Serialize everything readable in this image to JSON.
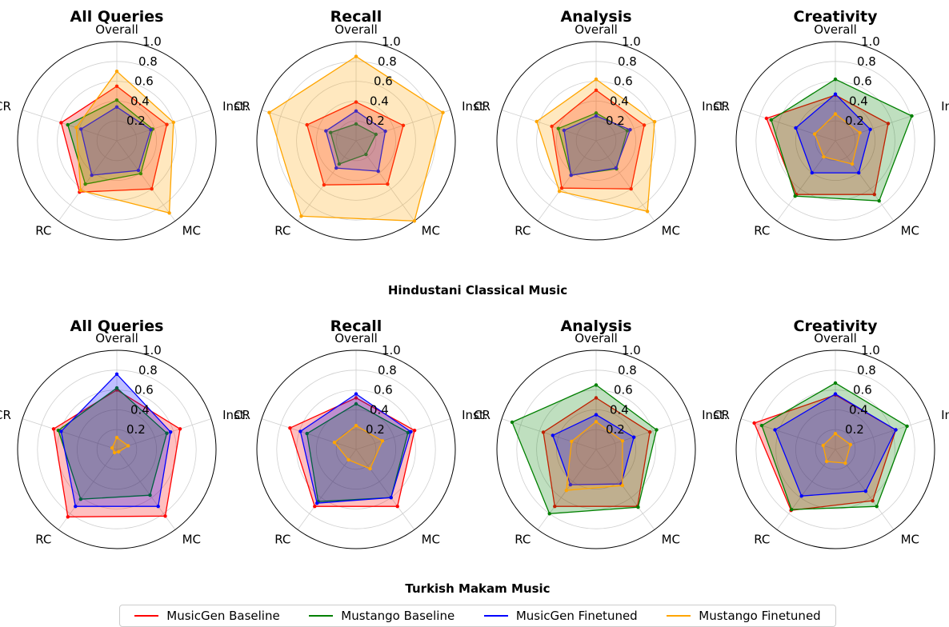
{
  "chart_data": {
    "type": "radar",
    "axes": [
      "Overall",
      "Inst.",
      "MC",
      "RC",
      "CR"
    ],
    "radial_ticks": [
      "0.2",
      "0.4",
      "0.6",
      "0.8",
      "1.0"
    ],
    "rlim": [
      0,
      1
    ],
    "legend": {
      "placement": "bottom",
      "entries": [
        {
          "name": "MusicGen Baseline",
          "color": "#ff0000"
        },
        {
          "name": "Mustango Baseline",
          "color": "#008000"
        },
        {
          "name": "MusicGen Finetuned",
          "color": "#0000ff"
        },
        {
          "name": "Mustango Finetuned",
          "color": "#ffa500"
        }
      ]
    },
    "sections": [
      {
        "title": "Hindustani Classical Music",
        "charts": [
          {
            "title": "All Queries",
            "series": [
              {
                "name": "MusicGen Baseline",
                "values": [
                  0.55,
                  0.53,
                  0.6,
                  0.64,
                  0.59
                ]
              },
              {
                "name": "Mustango Baseline",
                "values": [
                  0.41,
                  0.38,
                  0.41,
                  0.54,
                  0.52
                ]
              },
              {
                "name": "MusicGen Finetuned",
                "values": [
                  0.34,
                  0.36,
                  0.37,
                  0.43,
                  0.38
                ]
              },
              {
                "name": "Mustango Finetuned",
                "values": [
                  0.7,
                  0.6,
                  0.9,
                  0.62,
                  0.43
                ]
              }
            ]
          },
          {
            "title": "Recall",
            "series": [
              {
                "name": "MusicGen Baseline",
                "values": [
                  0.39,
                  0.5,
                  0.54,
                  0.55,
                  0.52
                ]
              },
              {
                "name": "Mustango Baseline",
                "values": [
                  0.17,
                  0.21,
                  0.17,
                  0.29,
                  0.27
                ]
              },
              {
                "name": "MusicGen Finetuned",
                "values": [
                  0.3,
                  0.31,
                  0.38,
                  0.34,
                  0.32
                ]
              },
              {
                "name": "Mustango Finetuned",
                "values": [
                  0.85,
                  0.92,
                  1.0,
                  0.94,
                  0.92
                ]
              }
            ]
          },
          {
            "title": "Analysis",
            "series": [
              {
                "name": "MusicGen Baseline",
                "values": [
                  0.51,
                  0.51,
                  0.6,
                  0.59,
                  0.47
                ]
              },
              {
                "name": "Mustango Baseline",
                "values": [
                  0.28,
                  0.33,
                  0.35,
                  0.43,
                  0.4
                ]
              },
              {
                "name": "MusicGen Finetuned",
                "values": [
                  0.25,
                  0.36,
                  0.34,
                  0.43,
                  0.34
                ]
              },
              {
                "name": "Mustango Finetuned",
                "values": [
                  0.62,
                  0.62,
                  0.88,
                  0.63,
                  0.63
                ]
              }
            ]
          },
          {
            "title": "Creativity",
            "series": [
              {
                "name": "MusicGen Baseline",
                "values": [
                  0.46,
                  0.56,
                  0.67,
                  0.67,
                  0.73
                ]
              },
              {
                "name": "Mustango Baseline",
                "values": [
                  0.62,
                  0.81,
                  0.75,
                  0.69,
                  0.68
                ]
              },
              {
                "name": "MusicGen Finetuned",
                "values": [
                  0.47,
                  0.37,
                  0.4,
                  0.4,
                  0.42
                ]
              },
              {
                "name": "Mustango Finetuned",
                "values": [
                  0.27,
                  0.26,
                  0.29,
                  0.2,
                  0.22
                ]
              }
            ]
          }
        ]
      },
      {
        "title": "Turkish Makam Music",
        "charts": [
          {
            "title": "All Queries",
            "series": [
              {
                "name": "MusicGen Baseline",
                "values": [
                  0.6,
                  0.67,
                  0.83,
                  0.84,
                  0.67
                ]
              },
              {
                "name": "Mustango Baseline",
                "values": [
                  0.62,
                  0.53,
                  0.57,
                  0.62,
                  0.62
                ]
              },
              {
                "name": "MusicGen Finetuned",
                "values": [
                  0.76,
                  0.57,
                  0.71,
                  0.71,
                  0.59
                ]
              },
              {
                "name": "Mustango Finetuned",
                "values": [
                  0.12,
                  0.12,
                  0.03,
                  0.04,
                  0.05
                ]
              }
            ]
          },
          {
            "title": "Recall",
            "series": [
              {
                "name": "MusicGen Baseline",
                "values": [
                  0.52,
                  0.62,
                  0.71,
                  0.71,
                  0.7
                ]
              },
              {
                "name": "Mustango Baseline",
                "values": [
                  0.46,
                  0.55,
                  0.6,
                  0.65,
                  0.52
                ]
              },
              {
                "name": "MusicGen Finetuned",
                "values": [
                  0.56,
                  0.58,
                  0.6,
                  0.67,
                  0.59
                ]
              },
              {
                "name": "Mustango Finetuned",
                "values": [
                  0.24,
                  0.28,
                  0.24,
                  0.13,
                  0.23
                ]
              }
            ]
          },
          {
            "title": "Analysis",
            "series": [
              {
                "name": "MusicGen Baseline",
                "values": [
                  0.52,
                  0.57,
                  0.71,
                  0.71,
                  0.56
                ]
              },
              {
                "name": "Mustango Baseline",
                "values": [
                  0.65,
                  0.64,
                  0.72,
                  0.8,
                  0.89
                ]
              },
              {
                "name": "MusicGen Finetuned",
                "values": [
                  0.35,
                  0.4,
                  0.43,
                  0.44,
                  0.46
                ]
              },
              {
                "name": "Mustango Finetuned",
                "values": [
                  0.28,
                  0.28,
                  0.45,
                  0.51,
                  0.26
                ]
              }
            ]
          },
          {
            "title": "Creativity",
            "series": [
              {
                "name": "MusicGen Baseline",
                "values": [
                  0.55,
                  0.64,
                  0.64,
                  0.76,
                  0.86
                ]
              },
              {
                "name": "Mustango Baseline",
                "values": [
                  0.67,
                  0.76,
                  0.71,
                  0.75,
                  0.78
                ]
              },
              {
                "name": "MusicGen Finetuned",
                "values": [
                  0.56,
                  0.64,
                  0.52,
                  0.58,
                  0.64
                ]
              },
              {
                "name": "Mustango Finetuned",
                "values": [
                  0.16,
                  0.16,
                  0.17,
                  0.15,
                  0.13
                ]
              }
            ]
          }
        ]
      }
    ]
  }
}
